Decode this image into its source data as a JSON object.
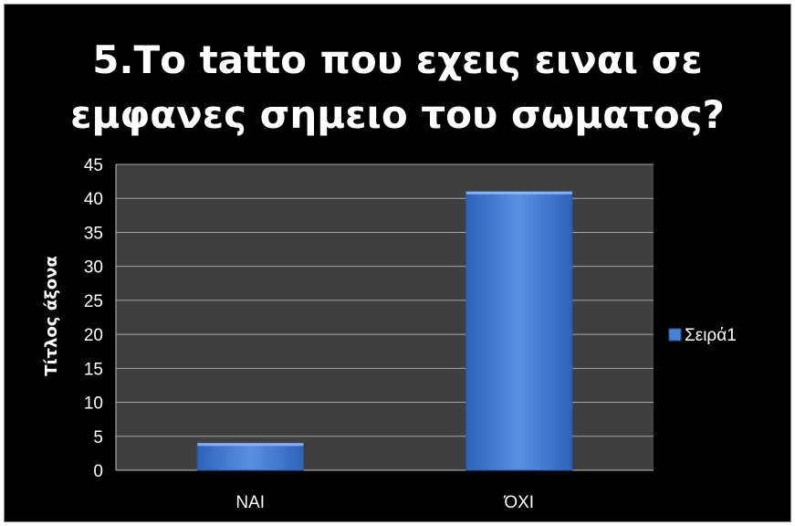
{
  "chart_data": {
    "type": "bar",
    "title_lines": [
      "5.Το tatto που εχεις ειναι σε",
      "εμφανες σημειο του σωματος?"
    ],
    "categories": [
      "ΝΑΙ",
      "ΌΧΙ"
    ],
    "series": [
      {
        "name": "Σειρά1",
        "values": [
          4,
          41
        ]
      }
    ],
    "ylabel": "Τίτλος άξονα",
    "xlabel": "",
    "ylim": [
      0,
      45
    ],
    "yticks": [
      0,
      5,
      10,
      15,
      20,
      25,
      30,
      35,
      40,
      45
    ],
    "grid": true,
    "legend_position": "right",
    "colors": {
      "bar": "#4a7fd4",
      "bar_dark": "#2b5aa8",
      "plot_bg": "#3f3f3f",
      "grid": "#a6a6a6",
      "background": "#000000",
      "text": "#ffffff"
    }
  }
}
